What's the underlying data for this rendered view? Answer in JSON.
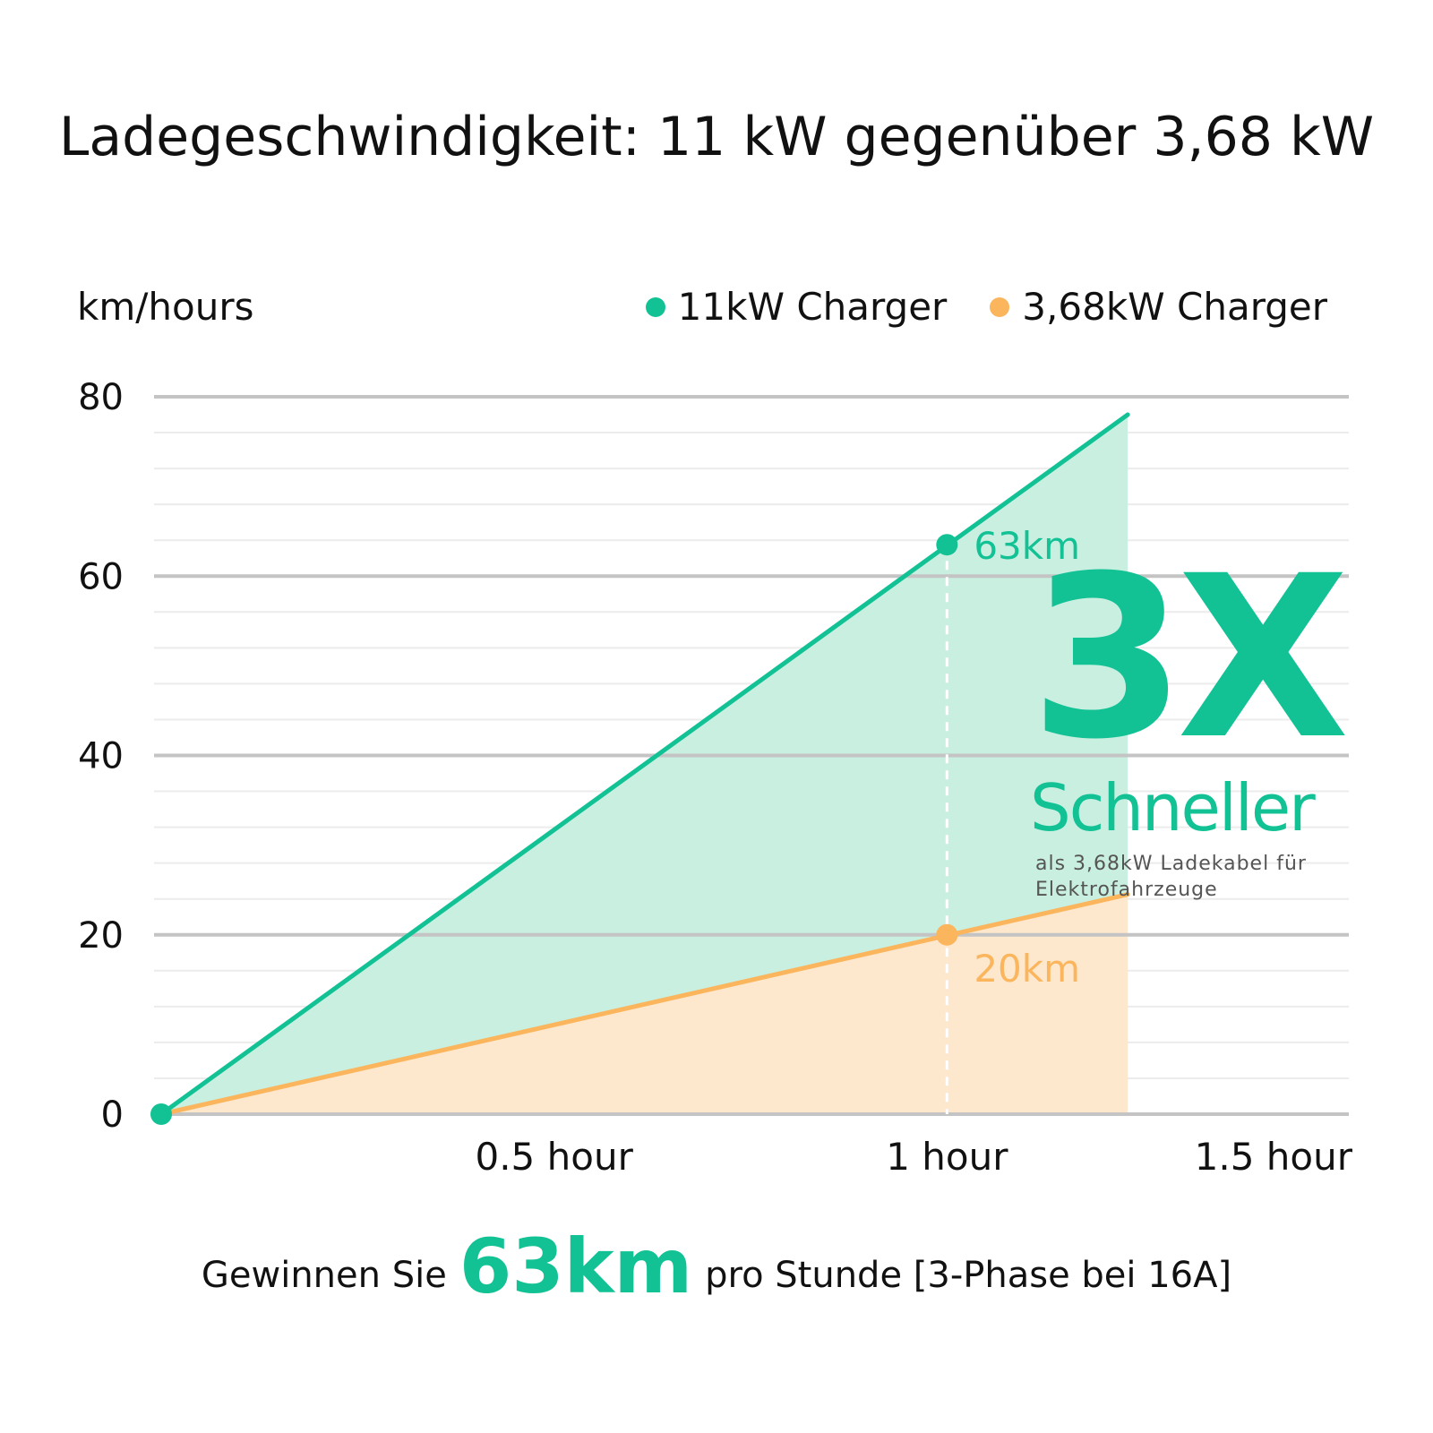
{
  "chart_data": {
    "type": "area",
    "title": "Ladegeschwindigkeit: 11 kW gegenüber 3,68 kW",
    "ylabel": "km/hours",
    "xlabel": "",
    "x_ticks": [
      {
        "value": 0.5,
        "label": "0.5 hour"
      },
      {
        "value": 1,
        "label": "1 hour"
      },
      {
        "value": 1.5,
        "label": "1.5 hour"
      }
    ],
    "y_ticks": [
      0,
      20,
      40,
      60,
      80
    ],
    "xlim": [
      0,
      1.5
    ],
    "ylim": [
      0,
      80
    ],
    "grid": true,
    "legend_position": "top-right",
    "series": [
      {
        "name": "11kW Charger",
        "color": "#12c295",
        "fill": "#c9efe0",
        "points": [
          {
            "x": 0,
            "y": 0
          },
          {
            "x": 1.23,
            "y": 78
          }
        ],
        "marker": {
          "x": 1,
          "y": 63.5,
          "label": "63km"
        }
      },
      {
        "name": "3,68kW Charger",
        "color": "#fbb55c",
        "fill": "#fde7cd",
        "points": [
          {
            "x": 0,
            "y": 0
          },
          {
            "x": 1.23,
            "y": 24.5
          }
        ],
        "marker": {
          "x": 1,
          "y": 20,
          "label": "20km"
        }
      }
    ],
    "annotation": {
      "big": "3X",
      "word": "Schneller",
      "note": "als 3,68kW Ladekabel für Elektrofahrzeuge"
    }
  },
  "footer": {
    "prefix": "Gewinnen Sie",
    "highlight": "63km",
    "suffix": "pro Stunde [3-Phase bei 16A]"
  },
  "colors": {
    "accent_green": "#12c295",
    "accent_orange": "#fbb55c",
    "grid_major": "#c4c4c4",
    "grid_minor": "#ececec"
  }
}
